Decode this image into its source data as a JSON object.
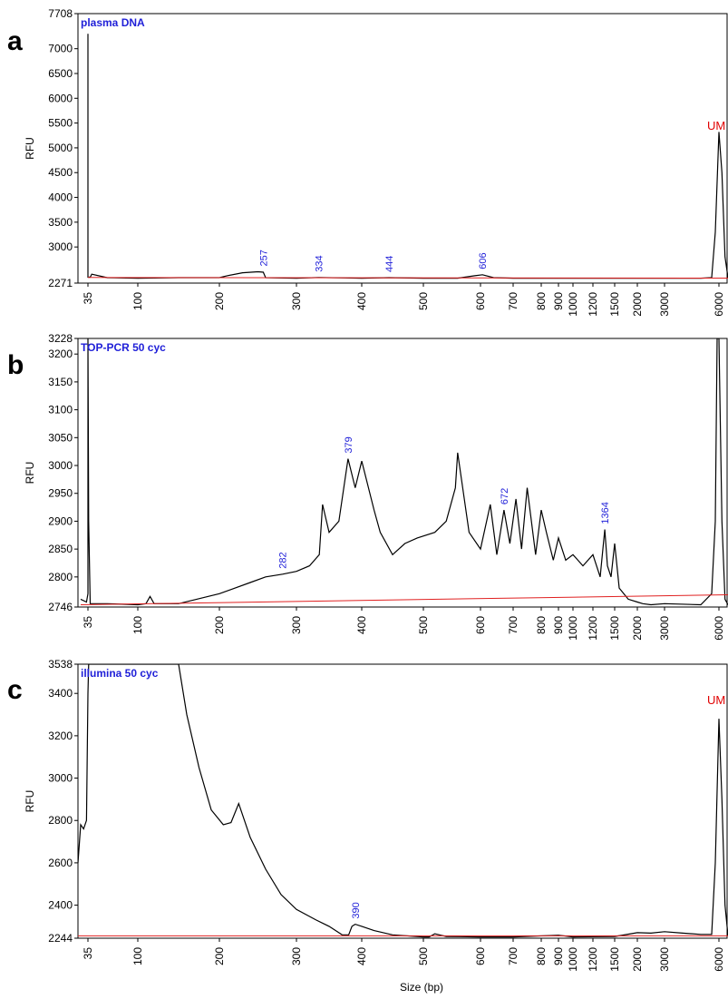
{
  "chart_data": [
    {
      "type": "line",
      "panel_letter": "a",
      "title": "plasma DNA",
      "ylabel": "RFU",
      "ylim": [
        2271,
        7708
      ],
      "yticks": [
        "7708",
        "7000",
        "6500",
        "6000",
        "5500",
        "5000",
        "4500",
        "4000",
        "3500",
        "3000",
        "2271"
      ],
      "xticks": [
        "35",
        "100",
        "200",
        "300",
        "400",
        "500",
        "600",
        "700",
        "800",
        "900",
        "1000",
        "1200",
        "1500",
        "2000",
        "3000",
        "6000"
      ],
      "peak_labels": [
        "257",
        "334",
        "444",
        "606"
      ],
      "marker_label": "UM",
      "series": [
        {
          "x": [
            "35",
            "35",
            "35",
            "35",
            "35",
            "35",
            "35",
            "38",
            "40",
            "60",
            "100",
            "150",
            "200",
            "210",
            "230",
            "250",
            "257",
            "260",
            "300",
            "334",
            "400",
            "444",
            "500",
            "560",
            "590",
            "606",
            "640",
            "700",
            "900",
            "1500",
            "3000",
            "5000",
            "5600",
            "5800",
            "6000",
            "6100",
            "6200",
            "6300"
          ],
          "values": [
            2390,
            3000,
            5000,
            7300,
            6000,
            3500,
            2390,
            2390,
            2450,
            2380,
            2370,
            2380,
            2380,
            2420,
            2480,
            2500,
            2490,
            2380,
            2370,
            2385,
            2370,
            2380,
            2370,
            2370,
            2420,
            2440,
            2380,
            2370,
            2370,
            2370,
            2370,
            2370,
            2380,
            3300,
            5320,
            4500,
            2800,
            2380
          ]
        },
        {
          "x": [
            "35",
            "6300"
          ],
          "values": [
            2385,
            2372
          ]
        }
      ]
    },
    {
      "type": "line",
      "panel_letter": "b",
      "title": "TOP-PCR 50 cyc",
      "ylabel": "RFU",
      "ylim": [
        2746,
        3228
      ],
      "yticks": [
        "3228",
        "3200",
        "3150",
        "3100",
        "3050",
        "3000",
        "2950",
        "2900",
        "2850",
        "2800",
        "2746"
      ],
      "xticks": [
        "35",
        "100",
        "200",
        "300",
        "400",
        "500",
        "600",
        "700",
        "800",
        "900",
        "1000",
        "1200",
        "1500",
        "2000",
        "3000",
        "6000"
      ],
      "peak_labels": [
        "282",
        "379",
        "672",
        "1364"
      ],
      "series": [
        {
          "x": [
            "30",
            "34",
            "35",
            "35",
            "35",
            "36",
            "38",
            "60",
            "100",
            "110",
            "115",
            "120",
            "150",
            "200",
            "240",
            "260",
            "282",
            "300",
            "320",
            "335",
            "340",
            "350",
            "365",
            "379",
            "390",
            "400",
            "420",
            "430",
            "450",
            "470",
            "490",
            "520",
            "540",
            "556",
            "560",
            "580",
            "600",
            "630",
            "650",
            "672",
            "690",
            "710",
            "730",
            "750",
            "780",
            "800",
            "830",
            "870",
            "900",
            "950",
            "1000",
            "1100",
            "1200",
            "1300",
            "1364",
            "1400",
            "1450",
            "1500",
            "1600",
            "1800",
            "2000",
            "2200",
            "2500",
            "3000",
            "5000",
            "5600",
            "5800",
            "5900",
            "6000",
            "6100",
            "6200",
            "6300"
          ],
          "values": [
            2760,
            2755,
            2770,
            3228,
            3228,
            2900,
            2752,
            2752,
            2750,
            2752,
            2765,
            2752,
            2752,
            2770,
            2790,
            2800,
            2805,
            2810,
            2820,
            2840,
            2930,
            2880,
            2900,
            3012,
            2960,
            3008,
            2920,
            2880,
            2840,
            2860,
            2870,
            2880,
            2900,
            2960,
            3023,
            2880,
            2850,
            2930,
            2840,
            2920,
            2860,
            2940,
            2850,
            2960,
            2840,
            2920,
            2880,
            2830,
            2870,
            2830,
            2840,
            2820,
            2840,
            2800,
            2885,
            2820,
            2800,
            2860,
            2780,
            2760,
            2755,
            2752,
            2750,
            2752,
            2750,
            2770,
            2900,
            3228,
            3228,
            2900,
            2760,
            2750
          ]
        },
        {
          "x": [
            "30",
            "6300"
          ],
          "values": [
            2750,
            2768
          ]
        }
      ]
    },
    {
      "type": "line",
      "panel_letter": "c",
      "title": "illumina 50 cyc",
      "ylabel": "RFU",
      "xlabel": "Size (bp)",
      "ylim": [
        2244,
        3538
      ],
      "yticks": [
        "3538",
        "3400",
        "3200",
        "3000",
        "2800",
        "2600",
        "2400",
        "2244"
      ],
      "xticks": [
        "35",
        "100",
        "200",
        "300",
        "400",
        "500",
        "600",
        "700",
        "800",
        "900",
        "1000",
        "1200",
        "1500",
        "2000",
        "3000",
        "6000"
      ],
      "peak_labels": [
        "390"
      ],
      "marker_label": "UM",
      "series": [
        {
          "x": [
            "28",
            "30",
            "32",
            "34",
            "35",
            "36",
            "38",
            "40",
            "150",
            "160",
            "175",
            "190",
            "205",
            "215",
            "225",
            "240",
            "260",
            "280",
            "300",
            "330",
            "350",
            "370",
            "380",
            "385",
            "390",
            "400",
            "420",
            "450",
            "500",
            "510",
            "520",
            "540",
            "600",
            "700",
            "900",
            "1000",
            "1500",
            "2000",
            "2500",
            "3000",
            "4000",
            "5000",
            "5600",
            "5800",
            "6000",
            "6100",
            "6200",
            "6300"
          ],
          "values": [
            2600,
            2780,
            2760,
            2800,
            3400,
            3538,
            3538,
            3538,
            3538,
            3300,
            3050,
            2850,
            2780,
            2790,
            2880,
            2720,
            2570,
            2450,
            2380,
            2330,
            2300,
            2260,
            2260,
            2300,
            2310,
            2300,
            2280,
            2260,
            2250,
            2250,
            2265,
            2252,
            2250,
            2250,
            2258,
            2250,
            2252,
            2270,
            2268,
            2275,
            2268,
            2262,
            2262,
            2600,
            3280,
            2900,
            2400,
            2255
          ]
        },
        {
          "x": [
            "28",
            "6300"
          ],
          "values": [
            2255,
            2255
          ]
        }
      ]
    }
  ]
}
